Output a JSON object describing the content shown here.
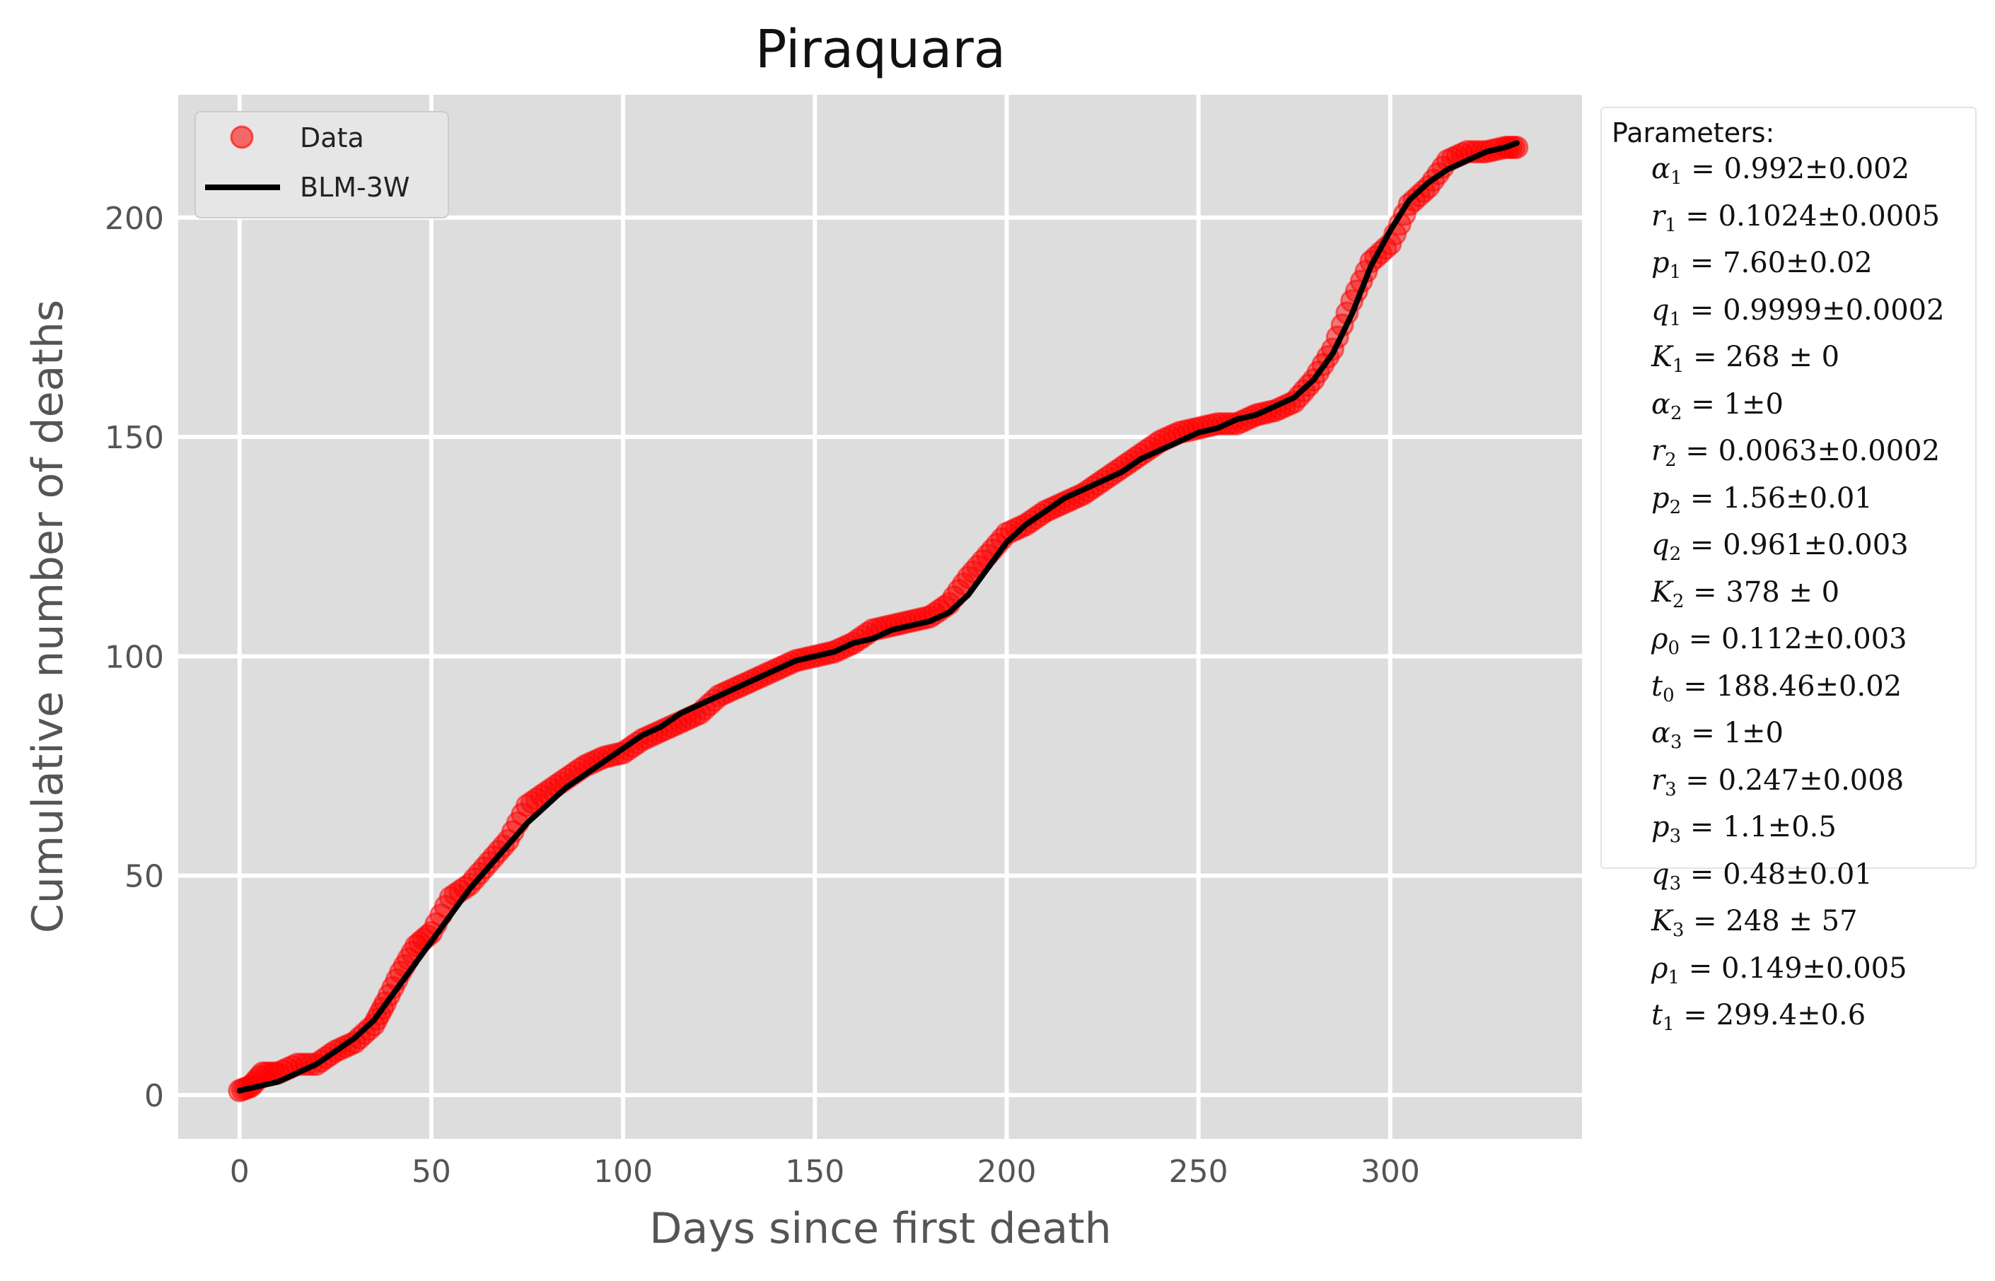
{
  "chart_data": {
    "type": "scatter",
    "title": "Piraquara",
    "xlabel": "Days since first death",
    "ylabel": "Cumulative number of deaths",
    "xlim": [
      -16,
      350
    ],
    "ylim": [
      -10,
      228
    ],
    "xticks": [
      0,
      50,
      100,
      150,
      200,
      250,
      300
    ],
    "yticks": [
      0,
      50,
      100,
      150,
      200
    ],
    "grid": true,
    "legend_position": "top-left",
    "series": [
      {
        "name": "Data",
        "kind": "markers",
        "color": "#ff0000",
        "x": [
          0,
          3,
          6,
          10,
          15,
          20,
          25,
          30,
          35,
          38,
          42,
          46,
          50,
          55,
          60,
          65,
          70,
          75,
          80,
          85,
          90,
          95,
          100,
          105,
          110,
          115,
          120,
          125,
          130,
          135,
          140,
          145,
          150,
          155,
          160,
          165,
          170,
          175,
          180,
          185,
          190,
          195,
          200,
          205,
          210,
          215,
          220,
          225,
          230,
          235,
          240,
          245,
          250,
          255,
          260,
          265,
          270,
          275,
          280,
          285,
          290,
          295,
          300,
          305,
          310,
          315,
          320,
          325,
          330,
          333
        ],
        "y": [
          1,
          2,
          5,
          5,
          7,
          7,
          10,
          12,
          16,
          21,
          28,
          34,
          37,
          45,
          48,
          53,
          58,
          66,
          69,
          72,
          75,
          77,
          78,
          81,
          83,
          85,
          87,
          91,
          93,
          95,
          97,
          99,
          100,
          101,
          103,
          106,
          107,
          108,
          109,
          112,
          118,
          123,
          128,
          130,
          133,
          135,
          137,
          140,
          143,
          146,
          149,
          151,
          152,
          153,
          153,
          155,
          156,
          158,
          163,
          170,
          181,
          190,
          194,
          203,
          207,
          213,
          215,
          215,
          216,
          216
        ]
      },
      {
        "name": "BLM-3W",
        "kind": "line",
        "color": "#000000",
        "x": [
          0,
          5,
          10,
          15,
          20,
          25,
          30,
          35,
          40,
          45,
          50,
          55,
          60,
          65,
          70,
          75,
          80,
          85,
          90,
          95,
          100,
          105,
          110,
          115,
          120,
          125,
          130,
          135,
          140,
          145,
          150,
          155,
          160,
          165,
          170,
          175,
          180,
          185,
          190,
          195,
          200,
          205,
          210,
          215,
          220,
          225,
          230,
          235,
          240,
          245,
          250,
          255,
          260,
          265,
          270,
          275,
          280,
          285,
          290,
          295,
          300,
          305,
          310,
          315,
          320,
          325,
          330,
          333
        ],
        "y": [
          1,
          2,
          3,
          5,
          7,
          10,
          13,
          17,
          23,
          29,
          35,
          41,
          47,
          52,
          57,
          62,
          66,
          70,
          73,
          76,
          79,
          82,
          84,
          87,
          89,
          91,
          93,
          95,
          97,
          99,
          100,
          101,
          103,
          104,
          106,
          107,
          108,
          110,
          114,
          120,
          126,
          130,
          133,
          136,
          138,
          140,
          142,
          145,
          147,
          149,
          151,
          152,
          154,
          155,
          157,
          159,
          163,
          169,
          178,
          189,
          197,
          204,
          208,
          211,
          213,
          215,
          216,
          217
        ]
      }
    ]
  },
  "parameters": {
    "title": "Parameters:",
    "items": [
      {
        "sym": "α",
        "sub": "1",
        "rest": " = 0.992±0.002"
      },
      {
        "sym": "r",
        "sub": "1",
        "rest": " = 0.1024±0.0005"
      },
      {
        "sym": "p",
        "sub": "1",
        "rest": " = 7.60±0.02"
      },
      {
        "sym": "q",
        "sub": "1",
        "rest": " = 0.9999±0.0002"
      },
      {
        "sym": "K",
        "sub": "1",
        "rest": " = 268 ± 0"
      },
      {
        "sym": "α",
        "sub": "2",
        "rest": " = 1±0"
      },
      {
        "sym": "r",
        "sub": "2",
        "rest": " = 0.0063±0.0002"
      },
      {
        "sym": "p",
        "sub": "2",
        "rest": " = 1.56±0.01"
      },
      {
        "sym": "q",
        "sub": "2",
        "rest": " = 0.961±0.003"
      },
      {
        "sym": "K",
        "sub": "2",
        "rest": " = 378 ± 0"
      },
      {
        "sym": "ρ",
        "sub": "0",
        "rest": " = 0.112±0.003"
      },
      {
        "sym": "t",
        "sub": "0",
        "rest": " = 188.46±0.02"
      },
      {
        "sym": "α",
        "sub": "3",
        "rest": " = 1±0"
      },
      {
        "sym": "r",
        "sub": "3",
        "rest": " = 0.247±0.008"
      },
      {
        "sym": "p",
        "sub": "3",
        "rest": " = 1.1±0.5"
      },
      {
        "sym": "q",
        "sub": "3",
        "rest": " = 0.48±0.01"
      },
      {
        "sym": "K",
        "sub": "3",
        "rest": " = 248 ± 57"
      },
      {
        "sym": "ρ",
        "sub": "1",
        "rest": " = 0.149±0.005"
      },
      {
        "sym": "t",
        "sub": "1",
        "rest": " = 299.4±0.6"
      }
    ]
  }
}
